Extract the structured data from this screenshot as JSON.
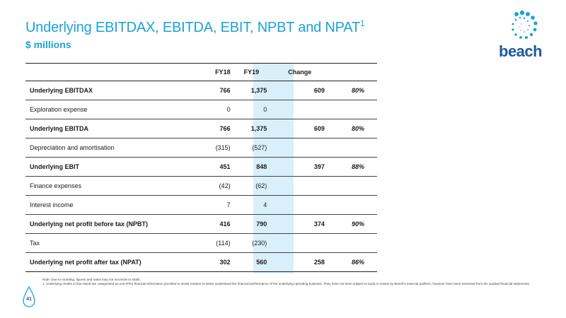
{
  "title": {
    "main": "Underlying EBITDAX, EBITDA, EBIT, NPBT and NPAT",
    "sup": "1",
    "subtitle": "$ millions"
  },
  "logo": {
    "text": "beach",
    "icon": "beach-sun-drops-icon",
    "colors": {
      "light_blue": "#1aa3d8",
      "dark_blue": "#1b5a9c"
    }
  },
  "table": {
    "headers": [
      "",
      "FY18",
      "FY19",
      "Change",
      ""
    ],
    "highlight_color": "#d9f0fb",
    "rows": [
      {
        "label": "Underlying EBITDAX",
        "fy18": "766",
        "fy19": "1,375",
        "change": "609",
        "pct": "80%",
        "bold": true
      },
      {
        "label": "Exploration expense",
        "fy18": "0",
        "fy19": "0",
        "change": "",
        "pct": "",
        "bold": false
      },
      {
        "label": "Underlying EBITDA",
        "fy18": "766",
        "fy19": "1,375",
        "change": "609",
        "pct": "80%",
        "bold": true
      },
      {
        "label": "Depreciation and amortisation",
        "fy18": "(315)",
        "fy19": "(527)",
        "change": "",
        "pct": "",
        "bold": false
      },
      {
        "label": "Underlying EBIT",
        "fy18": "451",
        "fy19": "848",
        "change": "397",
        "pct": "88%",
        "bold": true
      },
      {
        "label": "Finance expenses",
        "fy18": "(42)",
        "fy19": "(62)",
        "change": "",
        "pct": "",
        "bold": false
      },
      {
        "label": "Interest income",
        "fy18": "7",
        "fy19": "4",
        "change": "",
        "pct": "",
        "bold": false
      },
      {
        "label": "Underlying net profit before tax (NPBT)",
        "fy18": "416",
        "fy19": "790",
        "change": "374",
        "pct": "90%",
        "bold": true
      },
      {
        "label": "Tax",
        "fy18": "(114)",
        "fy19": "(230)",
        "change": "",
        "pct": "",
        "bold": false
      },
      {
        "label": "Underlying net profit after tax (NPAT)",
        "fy18": "302",
        "fy19": "560",
        "change": "258",
        "pct": "86%",
        "bold": true
      }
    ]
  },
  "notes": {
    "line1": "Note: Due to rounding, figures and ratios may not reconcile to totals.",
    "line2": "1. Underlying results in this report are categorised as non-IFRS financial information provided to assist readers to better understand the financial performance of the underlying operating business. They have not been subject to audit or review by Beach's external auditors, however have been extracted from the audited financial statements."
  },
  "page_number": "41"
}
